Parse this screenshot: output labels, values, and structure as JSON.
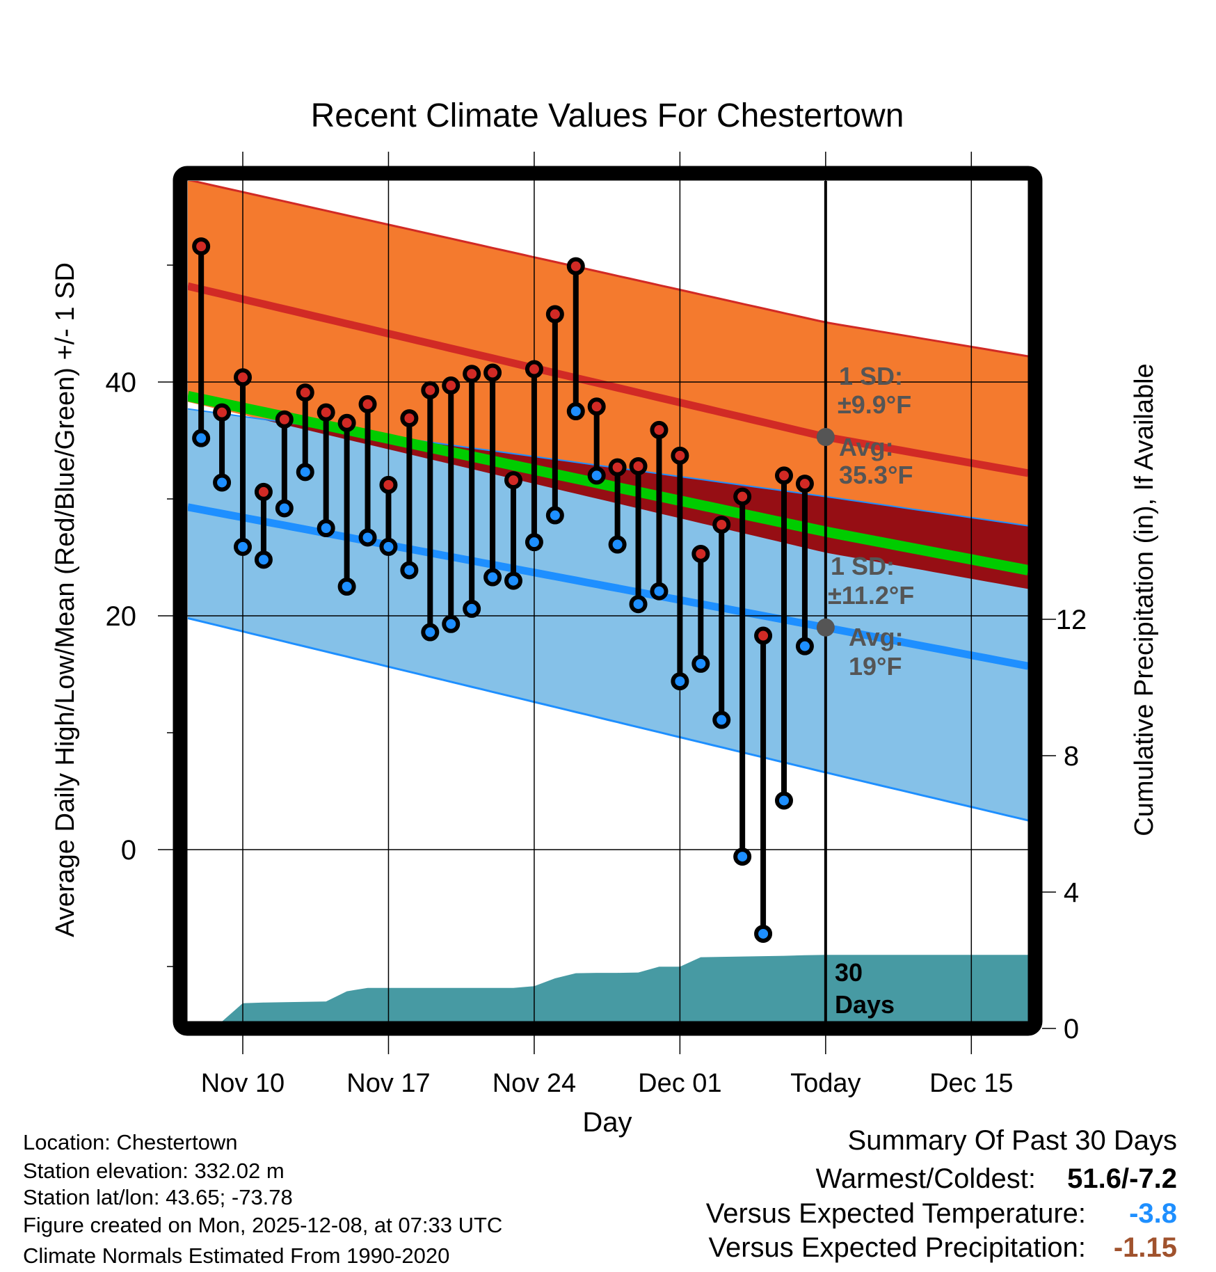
{
  "chart_data": {
    "type": "line",
    "title": "Recent Climate Values For Chestertown",
    "xlabel": "Day",
    "ylabel": "Average Daily High/Low/Mean (Red/Blue/Green) +/- 1 SD",
    "y2label": "Cumulative Precipitation (in), If Available",
    "x_units": "days relative to today (Dec 08)",
    "xlim": [
      -30.64,
      9.73
    ],
    "ylim": [
      -14.7,
      57.2
    ],
    "y2lim": [
      0,
      24.9
    ],
    "grid": true,
    "x_ticks": [
      {
        "x": -28,
        "label": "Nov 10"
      },
      {
        "x": -21,
        "label": "Nov 17"
      },
      {
        "x": -14,
        "label": "Nov 24"
      },
      {
        "x": -7,
        "label": "Dec 01"
      },
      {
        "x": 0,
        "label": "Today"
      },
      {
        "x": 7,
        "label": "Dec 15"
      }
    ],
    "y_ticks_labeled": [
      0,
      20,
      40
    ],
    "y_ticks_minor": [
      -10,
      10,
      30,
      50
    ],
    "y2_ticks": [
      0,
      4,
      8,
      12
    ],
    "normals": {
      "x": [
        -30.64,
        0,
        9.73
      ],
      "high_mean": [
        48.2,
        35.3,
        32.2
      ],
      "high_upper": [
        57.3,
        45.1,
        42.2
      ],
      "high_lower": [
        38.3,
        25.4,
        22.3
      ],
      "low_mean": [
        29.3,
        19.0,
        15.7
      ],
      "low_upper": [
        37.7,
        30.2,
        27.7
      ],
      "low_lower": [
        19.8,
        6.6,
        2.5
      ],
      "mean": [
        38.8,
        27.2,
        23.9
      ]
    },
    "daily": {
      "x": [
        -30,
        -29,
        -28,
        -27,
        -26,
        -25,
        -24,
        -23,
        -22,
        -21,
        -20,
        -19,
        -18,
        -17,
        -16,
        -15,
        -14,
        -13,
        -12,
        -11,
        -10,
        -9,
        -8,
        -7,
        -6,
        -5,
        -4,
        -3,
        -2,
        -1
      ],
      "high": [
        51.6,
        37.4,
        40.4,
        30.6,
        36.8,
        39.1,
        37.4,
        36.5,
        38.1,
        31.2,
        36.9,
        39.3,
        39.7,
        40.7,
        40.8,
        31.6,
        41.1,
        45.8,
        49.9,
        37.9,
        32.7,
        32.8,
        35.9,
        33.7,
        25.3,
        27.8,
        30.2,
        18.3,
        32.0,
        31.3
      ],
      "low": [
        35.2,
        31.4,
        25.9,
        24.8,
        29.2,
        32.3,
        27.5,
        22.5,
        26.7,
        25.9,
        23.9,
        18.6,
        19.3,
        20.6,
        23.3,
        23.0,
        26.3,
        28.6,
        37.5,
        32.0,
        26.1,
        21.0,
        22.1,
        14.4,
        15.9,
        11.1,
        -0.6,
        -7.2,
        4.2,
        17.4
      ]
    },
    "precip_cumulative": {
      "x": [
        -30,
        -29,
        -28,
        -27,
        -26,
        -25,
        -24,
        -23,
        -22,
        -21,
        -20,
        -19,
        -18,
        -17,
        -16,
        -15,
        -14,
        -13,
        -12,
        -11,
        -10,
        -9,
        -8,
        -7,
        -6,
        -5,
        -4,
        -3,
        -2,
        -1,
        0,
        9.73
      ],
      "values": [
        0,
        0,
        0.74,
        0.76,
        0.77,
        0.78,
        0.79,
        1.09,
        1.19,
        1.19,
        1.19,
        1.19,
        1.19,
        1.19,
        1.19,
        1.19,
        1.24,
        1.47,
        1.62,
        1.63,
        1.63,
        1.64,
        1.81,
        1.81,
        2.09,
        2.1,
        2.11,
        2.12,
        2.13,
        2.15,
        2.16,
        2.16
      ]
    },
    "annotations": {
      "high_sd_label": "1 SD:",
      "high_sd_value": "±9.9°F",
      "high_avg_label": "Avg:",
      "high_avg_value": "35.3°F",
      "high_avg": 35.3,
      "low_sd_label": "1 SD:",
      "low_sd_value": "±11.2°F",
      "low_avg_label": "Avg:",
      "low_avg_value": "19°F",
      "low_avg": 19,
      "period_num": "30",
      "period_unit": "Days"
    },
    "colors": {
      "orange_band": "#f47a2e",
      "red_line": "#d12a25",
      "dark_red": "#960e14",
      "green": "#00cc00",
      "light_blue": "#85c1e8",
      "blue_line": "#1e8fff",
      "teal": "#479aa3",
      "high_dot": "#d12a25",
      "low_dot": "#1e8fff",
      "annot": "#555555"
    }
  },
  "footer": {
    "location": "Location: Chestertown",
    "elevation": "Station elevation: 332.02 m",
    "latlon": "Station lat/lon: 43.65; -73.78",
    "created": "Figure created on Mon, 2025-12-08, at 07:33 UTC",
    "normals": "Climate Normals Estimated From 1990-2020"
  },
  "summary": {
    "title": "Summary Of Past 30 Days",
    "warmest_label": "Warmest/Coldest:",
    "warmest_value": "51.6/-7.2",
    "temp_label": "Versus Expected Temperature:",
    "temp_value": "-3.8",
    "temp_color": "#1e8fff",
    "precip_label": "Versus Expected Precipitation:",
    "precip_value": "-1.15",
    "precip_color": "#a0522d"
  }
}
